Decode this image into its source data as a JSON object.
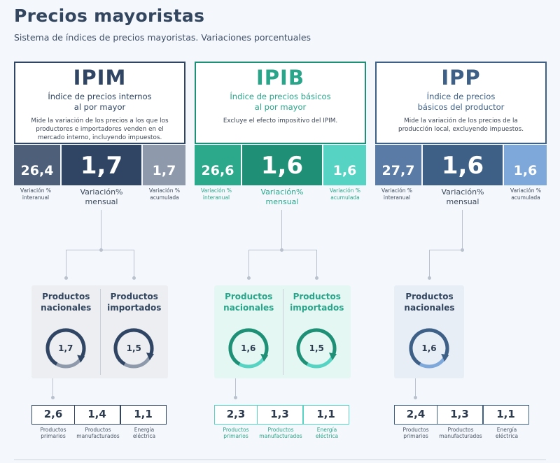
{
  "title": "Precios mayoristas",
  "subtitle": "Sistema de índices de precios mayoristas. Variaciones porcentuales",
  "labels": {
    "interanual": [
      "Variación %",
      "interanual"
    ],
    "mensual": [
      "Variación%",
      "mensual"
    ],
    "acumulada": [
      "Variación %",
      "acumulada"
    ]
  },
  "indices": [
    {
      "code": "IPIM",
      "name": [
        "Índice de precios internos",
        "al por mayor"
      ],
      "desc": [
        "Mide la variación de los precios a los que los",
        "productores e importadores venden en el",
        "mercado interno, incluyendo impuestos."
      ],
      "interanual": "26,4",
      "mensual": "1,7",
      "acumulada": "1,7",
      "colors": {
        "dark": "#2f4563",
        "mid": "#4e5f79",
        "light": "#8e9aab",
        "text": "#2f4563",
        "panel": "#eceef1"
      },
      "groups": [
        {
          "title": [
            "Productos",
            "nacionales"
          ],
          "value": "1,7",
          "level": 1.7
        },
        {
          "title": [
            "Productos",
            "importados"
          ],
          "value": "1,5",
          "level": 1.5
        }
      ],
      "breakdown": [
        {
          "value": "2,6",
          "label": [
            "Productos",
            "primarios"
          ]
        },
        {
          "value": "1,4",
          "label": [
            "Productos",
            "manufacturados"
          ]
        },
        {
          "value": "1,1",
          "label": [
            "Energía",
            "eléctrica"
          ]
        }
      ]
    },
    {
      "code": "IPIB",
      "name": [
        "Índice de precios básicos",
        "al por mayor"
      ],
      "desc": [
        "Excluye el efecto impositivo del IPIM."
      ],
      "interanual": "26,6",
      "mensual": "1,6",
      "acumulada": "1,6",
      "colors": {
        "dark": "#1f8f75",
        "mid": "#2ca88b",
        "light": "#57d3c3",
        "text": "#2aa58a",
        "panel": "#e4f7f3"
      },
      "groups": [
        {
          "title": [
            "Productos",
            "nacionales"
          ],
          "value": "1,6",
          "level": 1.6
        },
        {
          "title": [
            "Productos",
            "importados"
          ],
          "value": "1,5",
          "level": 1.5
        }
      ],
      "breakdown": [
        {
          "value": "2,3",
          "label": [
            "Productos",
            "primarios"
          ]
        },
        {
          "value": "1,3",
          "label": [
            "Productos",
            "manufacturados"
          ]
        },
        {
          "value": "1,1",
          "label": [
            "Energía",
            "eléctrica"
          ]
        }
      ]
    },
    {
      "code": "IPP",
      "name": [
        "Índice de precios",
        "básicos del productor"
      ],
      "desc": [
        "Mide la variación de los precios de la",
        "producción local, excluyendo impuestos."
      ],
      "interanual": "27,7",
      "mensual": "1,6",
      "acumulada": "1,6",
      "colors": {
        "dark": "#3e5f86",
        "mid": "#5a7ba6",
        "light": "#7ea8d9",
        "text": "#3e5f86",
        "panel": "#e8eef6"
      },
      "groups": [
        {
          "title": [
            "Productos",
            "nacionales"
          ],
          "value": "1,6",
          "level": 1.6
        }
      ],
      "breakdown": [
        {
          "value": "2,4",
          "label": [
            "Productos",
            "primarios"
          ]
        },
        {
          "value": "1,3",
          "label": [
            "Productos",
            "manufacturados"
          ]
        },
        {
          "value": "1,1",
          "label": [
            "Energía",
            "eléctrica"
          ]
        }
      ]
    }
  ]
}
